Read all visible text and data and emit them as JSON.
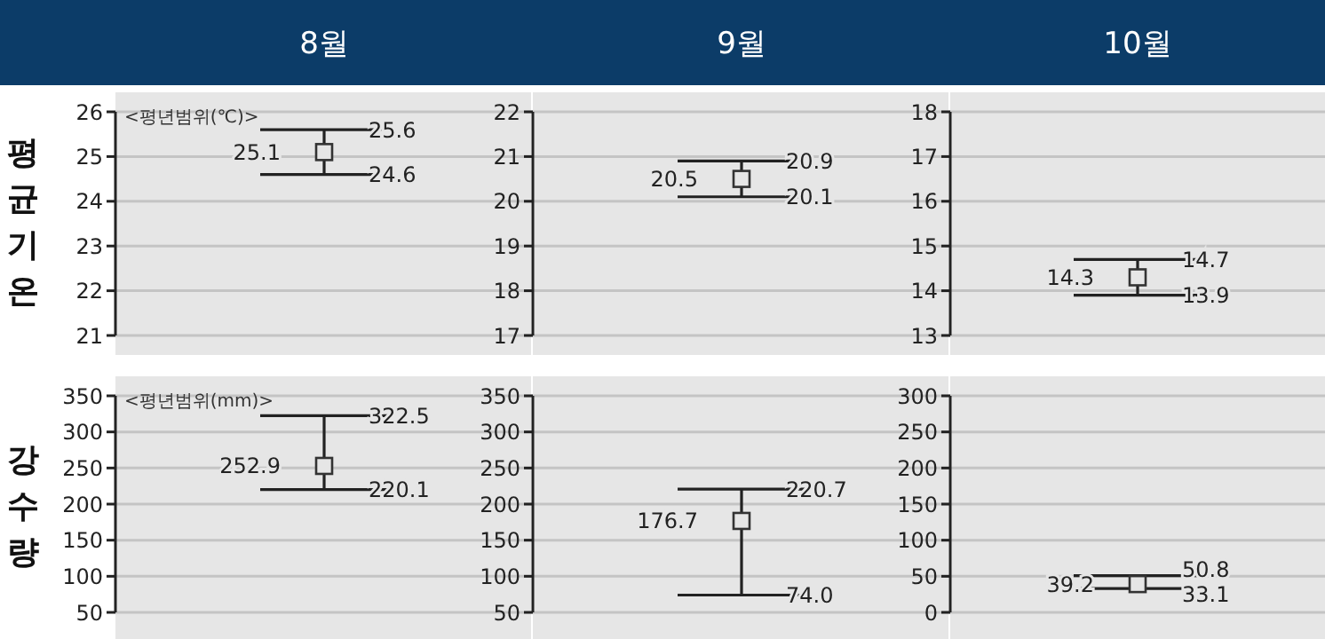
{
  "chart_data": [
    {
      "type": "scatter",
      "title": "8월",
      "ylabel": "평균기온",
      "annotations": [
        "<평년범위(℃)>",
        "25.6",
        "24.6"
      ],
      "categories": [
        null
      ],
      "values": [
        25.1
      ],
      "errors": [
        [
          24.6,
          25.6
        ]
      ],
      "color": "#333333",
      "marker": "square",
      "data_labels": true,
      "ylim": [
        21,
        26
      ],
      "yticks": [
        21,
        22,
        23,
        24,
        25,
        26
      ],
      "grid": "y"
    },
    {
      "type": "scatter",
      "title": "9월",
      "annotations": [
        "20.9",
        "20.1"
      ],
      "categories": [
        null
      ],
      "values": [
        20.5
      ],
      "errors": [
        [
          20.1,
          20.9
        ]
      ],
      "color": "#333333",
      "marker": "square",
      "data_labels": true,
      "ylim": [
        17,
        22
      ],
      "yticks": [
        17,
        18,
        19,
        20,
        21,
        22
      ],
      "grid": "y"
    },
    {
      "type": "scatter",
      "title": "10월",
      "annotations": [
        "14.7",
        "13.9"
      ],
      "categories": [
        null
      ],
      "values": [
        14.3
      ],
      "errors": [
        [
          13.9,
          14.7
        ]
      ],
      "color": "#333333",
      "marker": "square",
      "data_labels": true,
      "ylim": [
        13,
        18
      ],
      "yticks": [
        13,
        14,
        15,
        16,
        17,
        18
      ],
      "grid": "y"
    },
    {
      "type": "scatter",
      "ylabel": "강수량",
      "annotations": [
        "<평년범위(mm)>",
        "322.5",
        "220.1"
      ],
      "categories": [
        null
      ],
      "values": [
        252.9
      ],
      "errors": [
        [
          220.1,
          322.5
        ]
      ],
      "color": "#333333",
      "marker": "square",
      "data_labels": true,
      "ylim": [
        50,
        350
      ],
      "yticks": [
        50,
        100,
        150,
        200,
        250,
        300,
        350
      ],
      "grid": "y"
    },
    {
      "type": "scatter",
      "annotations": [
        "220.7",
        "74.0"
      ],
      "categories": [
        null
      ],
      "values": [
        176.7
      ],
      "errors": [
        [
          74.0,
          220.7
        ]
      ],
      "color": "#333333",
      "marker": "square",
      "data_labels": true,
      "ylim": [
        50,
        350
      ],
      "yticks": [
        50,
        100,
        150,
        200,
        250,
        300,
        350
      ],
      "grid": "y"
    },
    {
      "type": "scatter",
      "annotations": [
        "50.8",
        "33.1"
      ],
      "categories": [
        null
      ],
      "values": [
        39.2
      ],
      "errors": [
        [
          33.1,
          50.8
        ]
      ],
      "color": "#333333",
      "marker": "square",
      "data_labels": true,
      "ylim": [
        0,
        300
      ],
      "yticks": [
        0,
        50,
        100,
        150,
        200,
        250,
        300
      ],
      "grid": "y"
    }
  ]
}
